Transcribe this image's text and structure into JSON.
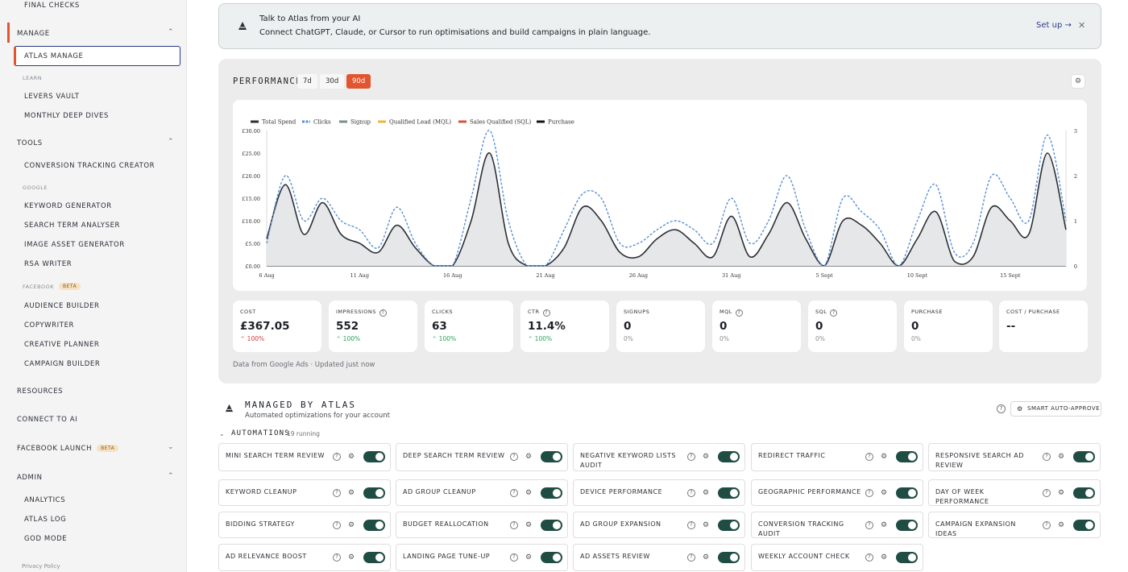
{
  "sidebar": {
    "final_checks": "FINAL CHECKS",
    "manage": "MANAGE",
    "atlas_manage": "ATLAS MANAGE",
    "learn": "LEARN",
    "levers_vault": "LEVERS VAULT",
    "monthly_deep_dives": "MONTHLY DEEP DIVES",
    "tools": "TOOLS",
    "conversion_tracking_creator": "CONVERSION TRACKING CREATOR",
    "google": "GOOGLE",
    "keyword_generator": "KEYWORD GENERATOR",
    "search_term_analyser": "SEARCH TERM ANALYSER",
    "image_asset_generator": "IMAGE ASSET GENERATOR",
    "rsa_writer": "RSA WRITER",
    "facebook": "FACEBOOK",
    "beta": "BETA",
    "audience_builder": "AUDIENCE BUILDER",
    "copywriter": "COPYWRITER",
    "creative_planner": "CREATIVE PLANNER",
    "campaign_builder": "CAMPAIGN BUILDER",
    "resources": "RESOURCES",
    "connect_to_ai": "CONNECT TO AI",
    "facebook_launch": "FACEBOOK LAUNCH",
    "admin": "ADMIN",
    "analytics": "ANALYTICS",
    "atlas_log": "ATLAS LOG",
    "god_mode": "GOD MODE",
    "privacy_policy": "Privacy Policy"
  },
  "banner": {
    "title": "Talk to Atlas from your AI",
    "subtitle": "Connect ChatGPT, Claude, or Cursor to run optimisations and build campaigns in plain language.",
    "setup": "Set up →",
    "close": "✕"
  },
  "performance": {
    "title": "PERFORMANCE",
    "ranges": [
      "7d",
      "30d",
      "90d"
    ],
    "active_range": "90d",
    "footer": "Data from Google Ads · Updated just now",
    "stats": [
      {
        "label": "COST",
        "value": "£367.05",
        "change": "100%",
        "dir": "down",
        "help": false
      },
      {
        "label": "IMPRESSIONS",
        "value": "552",
        "change": "100%",
        "dir": "up",
        "help": true
      },
      {
        "label": "CLICKS",
        "value": "63",
        "change": "100%",
        "dir": "up",
        "help": false
      },
      {
        "label": "CTR",
        "value": "11.4%",
        "change": "100%",
        "dir": "up",
        "help": true
      },
      {
        "label": "SIGNUPS",
        "value": "0",
        "change": "0%",
        "dir": "flat",
        "help": false
      },
      {
        "label": "MQL",
        "value": "0",
        "change": "0%",
        "dir": "flat",
        "help": true
      },
      {
        "label": "SQL",
        "value": "0",
        "change": "0%",
        "dir": "flat",
        "help": true
      },
      {
        "label": "PURCHASE",
        "value": "0",
        "change": "0%",
        "dir": "flat",
        "help": false
      },
      {
        "label": "COST / PURCHASE",
        "value": "--",
        "change": "",
        "dir": "flat",
        "help": false
      }
    ]
  },
  "chart_data": {
    "type": "line",
    "x": [
      "6 Aug",
      "7 Aug",
      "8 Aug",
      "9 Aug",
      "10 Aug",
      "11 Aug",
      "12 Aug",
      "13 Aug",
      "14 Aug",
      "15 Aug",
      "16 Aug",
      "17 Aug",
      "18 Aug",
      "19 Aug",
      "20 Aug",
      "21 Aug",
      "22 Aug",
      "23 Aug",
      "24 Aug",
      "25 Aug",
      "26 Aug",
      "27 Aug",
      "28 Aug",
      "29 Aug",
      "30 Aug",
      "31 Aug",
      "1 Sept",
      "2 Sept",
      "3 Sept",
      "4 Sept",
      "5 Sept",
      "6 Sept",
      "7 Sept",
      "8 Sept",
      "9 Sept",
      "10 Sept",
      "11 Sept",
      "12 Sept",
      "13 Sept",
      "14 Sept",
      "15 Sept",
      "16 Sept",
      "17 Sept",
      "18 Sept"
    ],
    "x_tick_labels": [
      "6 Aug",
      "11 Aug",
      "16 Aug",
      "21 Aug",
      "26 Aug",
      "31 Aug",
      "5 Sept",
      "10 Sept",
      "15 Sept"
    ],
    "y_left_ticks": [
      "£30.00",
      "£25.00",
      "£20.00",
      "£15.00",
      "£10.00",
      "£5.00",
      "£0.00"
    ],
    "y_right_ticks": [
      "3",
      "2",
      "1",
      "0"
    ],
    "ylim_left": [
      0,
      30
    ],
    "ylim_right": [
      0,
      3
    ],
    "legend_position": "top-left",
    "series": [
      {
        "name": "Total Spend",
        "axis": "left",
        "color": "#2b2f36",
        "fill": true,
        "values": [
          6,
          18,
          7,
          14,
          7,
          5,
          3,
          9,
          4,
          0,
          0,
          10,
          25,
          5,
          0,
          0,
          4,
          13,
          10,
          3,
          2,
          6,
          8,
          5,
          2,
          11,
          2,
          7,
          14,
          6,
          0,
          10,
          9,
          5,
          0,
          6,
          12,
          1,
          2,
          13,
          10,
          7,
          25,
          8
        ]
      },
      {
        "name": "Clicks",
        "axis": "right",
        "color": "#5a8fd6",
        "dashed": true,
        "values": [
          0.5,
          2.0,
          1.0,
          1.5,
          1.0,
          0.8,
          0.4,
          1.3,
          0.5,
          0.0,
          0.0,
          1.5,
          3.0,
          1.0,
          0.0,
          0.0,
          0.8,
          1.6,
          1.5,
          0.5,
          0.5,
          0.8,
          1.0,
          0.8,
          0.5,
          1.5,
          0.5,
          1.0,
          2.0,
          0.8,
          0.0,
          1.5,
          1.2,
          0.8,
          0.0,
          1.0,
          1.8,
          0.3,
          0.5,
          2.0,
          1.5,
          1.0,
          2.9,
          1.0
        ]
      },
      {
        "name": "Signup",
        "axis": "right",
        "color": "#7a8f8a",
        "values": [
          0,
          0,
          0,
          0,
          0,
          0,
          0,
          0,
          0,
          0,
          0,
          0,
          0,
          0,
          0,
          0,
          0,
          0,
          0,
          0,
          0,
          0,
          0,
          0,
          0,
          0,
          0,
          0,
          0,
          0,
          0,
          0,
          0,
          0,
          0,
          0,
          0,
          0,
          0,
          0,
          0,
          0,
          0,
          0
        ]
      },
      {
        "name": "Qualified Lead (MQL)",
        "axis": "right",
        "color": "#e7b93c",
        "values": [
          0,
          0,
          0,
          0,
          0,
          0,
          0,
          0,
          0,
          0,
          0,
          0,
          0,
          0,
          0,
          0,
          0,
          0,
          0,
          0,
          0,
          0,
          0,
          0,
          0,
          0,
          0,
          0,
          0,
          0,
          0,
          0,
          0,
          0,
          0,
          0,
          0,
          0,
          0,
          0,
          0,
          0,
          0,
          0
        ]
      },
      {
        "name": "Sales Qualified (SQL)",
        "axis": "right",
        "color": "#d2553a",
        "values": [
          0,
          0,
          0,
          0,
          0,
          0,
          0,
          0,
          0,
          0,
          0,
          0,
          0,
          0,
          0,
          0,
          0,
          0,
          0,
          0,
          0,
          0,
          0,
          0,
          0,
          0,
          0,
          0,
          0,
          0,
          0,
          0,
          0,
          0,
          0,
          0,
          0,
          0,
          0,
          0,
          0,
          0,
          0,
          0
        ]
      },
      {
        "name": "Purchase",
        "axis": "right",
        "color": "#111418",
        "values": [
          0,
          0,
          0,
          0,
          0,
          0,
          0,
          0,
          0,
          0,
          0,
          0,
          0,
          0,
          0,
          0,
          0,
          0,
          0,
          0,
          0,
          0,
          0,
          0,
          0,
          0,
          0,
          0,
          0,
          0,
          0,
          0,
          0,
          0,
          0,
          0,
          0,
          0,
          0,
          0,
          0,
          0,
          0,
          0
        ]
      }
    ]
  },
  "managed": {
    "title": "MANAGED BY ATLAS",
    "subtitle": "Automated optimizations for your account",
    "auto_approve": "SMART AUTO-APPROVE",
    "automations_label": "AUTOMATIONS",
    "running": "19 running"
  },
  "automations": [
    "MINI SEARCH TERM REVIEW",
    "DEEP SEARCH TERM REVIEW",
    "NEGATIVE KEYWORD LISTS AUDIT",
    "REDIRECT TRAFFIC",
    "RESPONSIVE SEARCH AD REVIEW",
    "KEYWORD CLEANUP",
    "AD GROUP CLEANUP",
    "DEVICE PERFORMANCE",
    "GEOGRAPHIC PERFORMANCE",
    "DAY OF WEEK PERFORMANCE",
    "BIDDING STRATEGY",
    "BUDGET REALLOCATION",
    "AD GROUP EXPANSION",
    "CONVERSION TRACKING AUDIT",
    "CAMPAIGN EXPANSION IDEAS",
    "AD RELEVANCE BOOST",
    "LANDING PAGE TUNE-UP",
    "AD ASSETS REVIEW",
    "WEEKLY ACCOUNT CHECK"
  ],
  "icons": {
    "help": "?",
    "gear": "⚙",
    "chev_up": "⌃",
    "chev_down": "⌄"
  }
}
